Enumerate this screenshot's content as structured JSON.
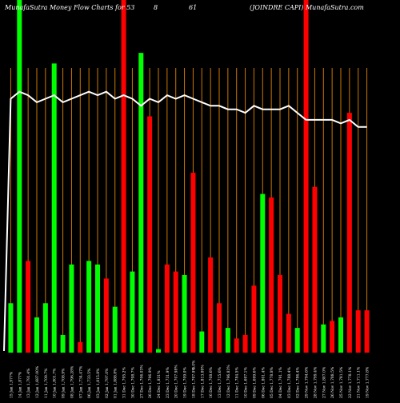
{
  "header": {
    "left": "MunafaSutra  Money Flow  Charts for 53",
    "mid_a": "8",
    "mid_b": "61",
    "right": "(JOINDRE CAPI) MunafaSutra.com"
  },
  "colors": {
    "background": "#000000",
    "up": "#00ff00",
    "down": "#ff0000",
    "gridline": "#cc7700",
    "line": "#ffffff",
    "text": "#ffffff"
  },
  "chart_data": {
    "type": "bar",
    "ylim": [
      0,
      100
    ],
    "categories": [
      "15 Jan 1,977%",
      "14 Jan 1,877%",
      "13 Jan 1,791.4%",
      "12 Jan 1,687.00%",
      "11 Jan 1,709.7%",
      "10 Jan 1,801.7%",
      "09 Jan 1,708.9%",
      "08 Jan 1,796.28%",
      "07 Jan 1,734.47%",
      "06 Jan 1,733.5%",
      "03 Jan 1,815.8%",
      "02 Jan 1,797.0%",
      "01 Jan 1,888.8%",
      "31 Dec 1,795.2%",
      "30 Dec 1,798.7%",
      "27 Dec 1,706.03%",
      "26 Dec 1,796.9%",
      "24 Dec 1,831%",
      "23 Dec 1,731.9%",
      "20 Dec 1,707.98%",
      "19 Dec 1,709.0%",
      "18 Dec 1,797.9%",
      "17 Dec 1,813.89%",
      "16 Dec 1,708.6%",
      "13 Dec 1,715.6%",
      "12 Dec 1,796.83%",
      "11 Dec 1,784.5%",
      "10 Dec 1,697.1%",
      "09 Dec 1,699.6%",
      "06 Dec 1,801.4%",
      "05 Dec 1,778.8%",
      "04 Dec 1,791.1%",
      "03 Dec 1,788.4%",
      "02 Dec 1,786.4%",
      "29 Nov 1,794.6%",
      "28 Nov 1,799.4%",
      "27 Nov 1,807.0%",
      "26 Nov 1,788.5%",
      "25 Nov 1,781.5%",
      "22 Nov 1,778.1%",
      "21 Nov 1,711.1%",
      "19 Nov 1,777.8%"
    ],
    "extra_label": "0.0%",
    "series": [
      {
        "values": [
          14,
          100,
          26,
          10,
          14,
          82,
          5,
          25,
          3,
          26,
          25,
          21,
          13,
          100,
          23,
          85,
          67,
          1,
          25,
          23,
          22,
          51,
          6,
          27,
          14,
          7,
          4,
          5,
          19,
          45,
          44,
          22,
          11,
          7,
          100,
          47,
          8,
          9,
          10,
          68,
          12,
          12
        ]
      },
      {
        "directions": [
          "up",
          "up",
          "down",
          "up",
          "up",
          "up",
          "up",
          "up",
          "down",
          "up",
          "up",
          "down",
          "up",
          "down",
          "up",
          "up",
          "down",
          "up",
          "down",
          "down",
          "up",
          "down",
          "up",
          "down",
          "down",
          "up",
          "down",
          "down",
          "down",
          "up",
          "down",
          "down",
          "down",
          "up",
          "down",
          "down",
          "up",
          "down",
          "up",
          "down",
          "down",
          "down"
        ]
      }
    ],
    "line": {
      "name": "",
      "values": [
        72,
        74,
        73,
        71,
        72,
        73,
        71,
        72,
        73,
        74,
        73,
        74,
        72,
        73,
        72,
        70,
        72,
        71,
        73,
        72,
        73,
        72,
        71,
        70,
        70,
        69,
        69,
        68,
        70,
        69,
        69,
        69,
        70,
        68,
        66,
        66,
        66,
        66,
        65,
        66,
        64,
        64
      ],
      "start": 0
    }
  }
}
